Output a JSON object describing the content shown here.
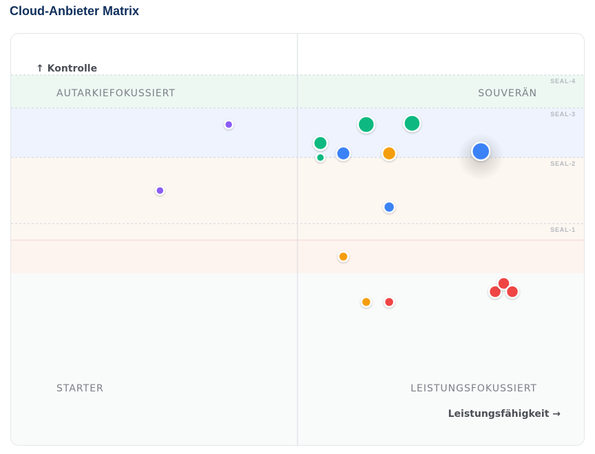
{
  "title": "Cloud-Anbieter Matrix",
  "chart_data": {
    "type": "scatter",
    "xlabel": "Leistungsfähigkeit →",
    "ylabel": "↑ Kontrolle",
    "xlim": [
      0,
      100
    ],
    "ylim": [
      0,
      100
    ],
    "grid": false,
    "quadrants": {
      "top_left": "AUTARKIEFOKUSSIERT",
      "top_right": "SOUVERÄN",
      "bottom_left": "STARTER",
      "bottom_right": "LEISTUNGSFOKUSSIERT"
    },
    "bands": [
      {
        "label": "SEAL-4",
        "y_from": 90,
        "y_to": 82,
        "color": "#edf8f3"
      },
      {
        "label": "SEAL-3",
        "y_from": 82,
        "y_to": 70,
        "color": "#eef3fd"
      },
      {
        "label": "SEAL-2",
        "y_from": 70,
        "y_to": 54,
        "color": "#fdf7f1"
      },
      {
        "label": "SEAL-1",
        "y_from": 54,
        "y_to": 50,
        "color": "#fdf7f1"
      },
      {
        "label": "",
        "y_from": 50,
        "y_to": 42,
        "color": "#fdf3ef"
      },
      {
        "label": "",
        "y_from": 42,
        "y_to": 0,
        "color": "#f9fafa"
      }
    ],
    "colors": {
      "green": "#10b981",
      "blue": "#3b82f6",
      "orange": "#f59e0b",
      "purple": "#8b5cf6",
      "red": "#ef4444"
    },
    "points": [
      {
        "x": 38,
        "y": 78,
        "size": 6,
        "color": "#8b5cf6"
      },
      {
        "x": 26,
        "y": 62,
        "size": 6,
        "color": "#8b5cf6"
      },
      {
        "x": 62,
        "y": 78,
        "size": 12,
        "color": "#10b981"
      },
      {
        "x": 70,
        "y": 78.3,
        "size": 12,
        "color": "#10b981"
      },
      {
        "x": 54,
        "y": 73.5,
        "size": 10,
        "color": "#10b981"
      },
      {
        "x": 54,
        "y": 70,
        "size": 6,
        "color": "#10b981"
      },
      {
        "x": 58,
        "y": 71,
        "size": 10,
        "color": "#3b82f6"
      },
      {
        "x": 66,
        "y": 71,
        "size": 10,
        "color": "#f59e0b"
      },
      {
        "x": 82,
        "y": 71.5,
        "size": 13,
        "color": "#3b82f6",
        "highlight": true
      },
      {
        "x": 66,
        "y": 58,
        "size": 8,
        "color": "#3b82f6"
      },
      {
        "x": 58,
        "y": 46,
        "size": 7,
        "color": "#f59e0b"
      },
      {
        "x": 62,
        "y": 35,
        "size": 7,
        "color": "#f59e0b"
      },
      {
        "x": 66,
        "y": 35,
        "size": 7,
        "color": "#ef4444"
      },
      {
        "x": 84.5,
        "y": 37.5,
        "size": 9,
        "color": "#ef4444"
      },
      {
        "x": 86,
        "y": 39.5,
        "size": 9,
        "color": "#ef4444"
      },
      {
        "x": 87.5,
        "y": 37.5,
        "size": 9,
        "color": "#ef4444"
      }
    ]
  }
}
